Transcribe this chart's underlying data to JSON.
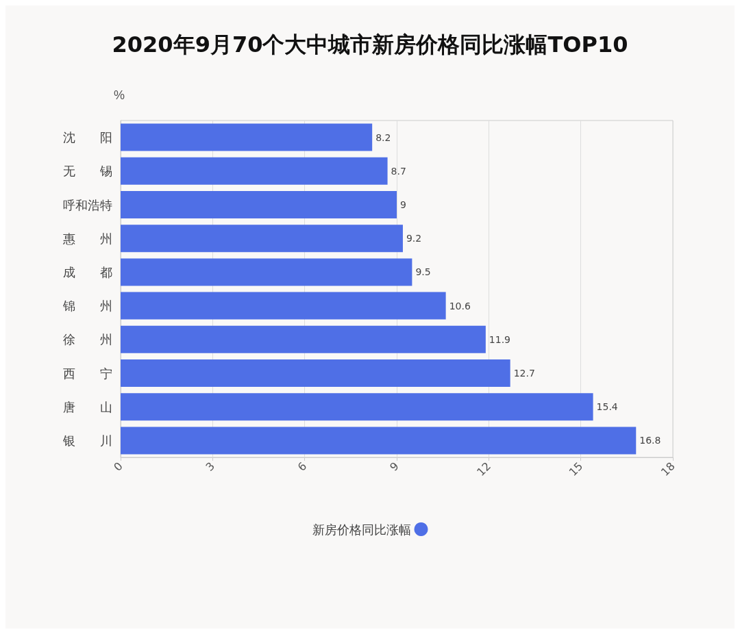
{
  "chart_data": {
    "type": "bar",
    "orientation": "horizontal",
    "title": "2020年9月70个大中城市新房价格同比涨幅TOP10",
    "xlabel": "%",
    "categories": [
      "沈　　阳",
      "无　　锡",
      "呼和浩特",
      "惠　　州",
      "成　　都",
      "锦　　州",
      "徐　　州",
      "西　　宁",
      "唐　　山",
      "银　　川"
    ],
    "series": [
      {
        "name": "新房价格同比涨幅",
        "color": "#4f6fe6",
        "values": [
          8.2,
          8.7,
          9,
          9.2,
          9.5,
          10.6,
          11.9,
          12.7,
          15.4,
          16.8
        ]
      }
    ],
    "xlim": [
      0,
      18
    ],
    "xticks": [
      0,
      3,
      6,
      9,
      12,
      15,
      18
    ],
    "grid": "x",
    "legend": "bottom",
    "data_labels": true
  }
}
